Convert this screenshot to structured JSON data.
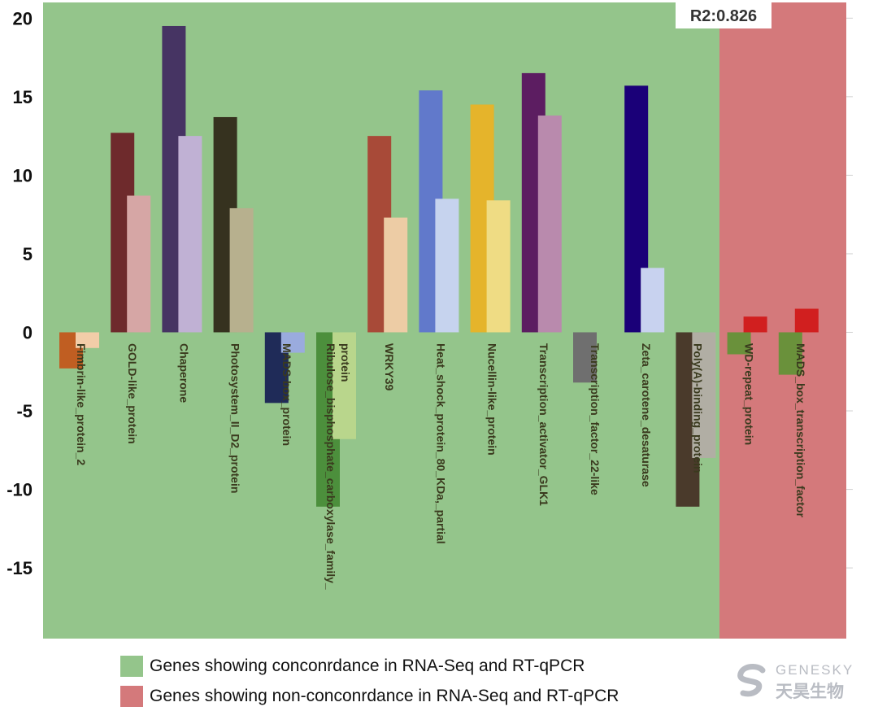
{
  "chart_data": {
    "type": "bar",
    "annotation": "R2:0.826",
    "ylim": [
      -19.5,
      21
    ],
    "yticks": [
      20,
      15,
      10,
      5,
      0,
      -5,
      -10,
      -15
    ],
    "grid": false,
    "regions": [
      {
        "label": "Genes showing conconrdance in RNA-Seq and RT-qPCR",
        "color": "#94c58b"
      },
      {
        "label": "Genes showing non-conconrdance in RNA-Seq and RT-qPCR",
        "color": "#d4797b"
      }
    ],
    "categories": [
      "Fimbrin-like_protein_2",
      "GOLD-like_protein",
      "Chaperone",
      "Photosystem_II_D2_protein",
      "MADS-box_protein",
      "Ribulose_bisphosphate_carboxylase_family_protein",
      "WRKY39",
      "Heat_shock_protein_80_KDa_partial",
      "Nucellin-like_protein",
      "Transcription_activator_GLK1",
      "Transcription_factor_22-like",
      "Zeta_carotene_desaturase",
      "Poly(A)-binding_protein",
      "WD-repeat_protein",
      "MADS_box_transcription_factor"
    ],
    "label_lines": [
      [
        "Fimbrin-like_protein_2"
      ],
      [
        "GOLD-like_protein"
      ],
      [
        "Chaperone"
      ],
      [
        "Photosystem_II_D2_protein"
      ],
      [
        "MADS-box_protein"
      ],
      [
        "Ribulose_bisphosphate_carboxylase_family_",
        "protein"
      ],
      [
        "WRKY39"
      ],
      [
        "Heat_shock_protein_80_KDa,_partial"
      ],
      [
        "Nucellin-like_protein"
      ],
      [
        "Transcription_activator_GLK1"
      ],
      [
        "Transcription_factor_22-like"
      ],
      [
        "Zeta_carotene_desaturase"
      ],
      [
        "Poly(A)-binding_protein"
      ],
      [
        "WD-repeat_protein"
      ],
      [
        "MADS_box_transcription_factor"
      ]
    ],
    "concordant": [
      true,
      true,
      true,
      true,
      true,
      true,
      true,
      true,
      true,
      true,
      true,
      true,
      true,
      false,
      false
    ],
    "rnaseq_values": [
      -2.3,
      12.7,
      19.5,
      13.7,
      -4.5,
      -11.1,
      12.5,
      15.4,
      14.5,
      16.5,
      -3.2,
      15.7,
      -11.1,
      -1.4,
      -2.7
    ],
    "qpcr_values": [
      -1.0,
      8.7,
      12.5,
      7.9,
      -1.3,
      -6.8,
      7.3,
      8.5,
      8.4,
      13.8,
      null,
      4.1,
      -8.0,
      1.0,
      1.5
    ],
    "rnaseq_colors": [
      "#c05e22",
      "#6e2a2c",
      "#463463",
      "#36321f",
      "#1f2b58",
      "#4c8f3c",
      "#a84a38",
      "#6179cb",
      "#e5b42b",
      "#5c1d61",
      "#6f6f6f",
      "#1a0078",
      "#4a3a2b",
      "#6a913b",
      "#6a913b"
    ],
    "qpcr_colors": [
      "#f2cda8",
      "#d6a6a5",
      "#c0b1d4",
      "#b7b08e",
      "#9aabde",
      "#b9d68c",
      "#edcca5",
      "#c6d3ee",
      "#efdc84",
      "#b98aad",
      "#cccccc",
      "#c8d2ef",
      "#b1aea4",
      "#d11f1f",
      "#d11f1f"
    ]
  }
}
